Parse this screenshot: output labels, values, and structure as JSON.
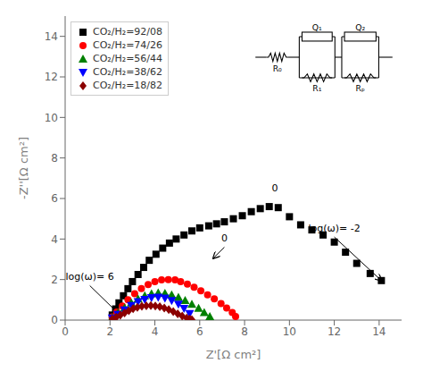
{
  "chart_data": {
    "type": "scatter",
    "x_label": "Z'[Ω cm²]",
    "y_label": "-Z''[Ω cm²]",
    "xlim": [
      0,
      15
    ],
    "ylim": [
      0,
      15
    ],
    "xticks": [
      0,
      2,
      4,
      6,
      8,
      10,
      12,
      14
    ],
    "yticks": [
      0,
      2,
      4,
      6,
      8,
      10,
      12,
      14
    ],
    "grid": false,
    "legend": "upper left",
    "series": [
      {
        "name": "CO₂/H₂=92/08",
        "color": "black",
        "marker": "square",
        "x": [
          2.1,
          2.25,
          2.4,
          2.6,
          2.8,
          3.0,
          3.25,
          3.5,
          3.75,
          4.05,
          4.35,
          4.65,
          4.95,
          5.3,
          5.65,
          6.0,
          6.4,
          6.75,
          7.1,
          7.5,
          7.9,
          8.3,
          8.7,
          9.1,
          9.5,
          10.0,
          10.5,
          11.0,
          11.5,
          12.0,
          12.5,
          13.0,
          13.6,
          14.1
        ],
        "values": [
          0.25,
          0.55,
          0.85,
          1.2,
          1.55,
          1.9,
          2.25,
          2.6,
          2.95,
          3.25,
          3.55,
          3.8,
          4.0,
          4.2,
          4.4,
          4.55,
          4.65,
          4.75,
          4.85,
          5.0,
          5.15,
          5.35,
          5.5,
          5.6,
          5.55,
          5.1,
          4.7,
          4.45,
          4.2,
          3.85,
          3.35,
          2.8,
          2.3,
          1.95
        ]
      },
      {
        "name": "CO₂/H₂=74/26",
        "color": "red",
        "marker": "circle",
        "x": [
          2.1,
          2.3,
          2.55,
          2.8,
          3.1,
          3.4,
          3.7,
          4.0,
          4.3,
          4.6,
          4.9,
          5.15,
          5.45,
          5.75,
          6.05,
          6.35,
          6.65,
          6.95,
          7.2,
          7.45,
          7.6
        ],
        "values": [
          0.15,
          0.4,
          0.7,
          1.0,
          1.3,
          1.55,
          1.75,
          1.9,
          1.98,
          2.0,
          1.98,
          1.9,
          1.78,
          1.62,
          1.45,
          1.25,
          1.05,
          0.82,
          0.6,
          0.38,
          0.18
        ]
      },
      {
        "name": "CO₂/H₂=56/44",
        "color": "green",
        "marker": "triangle",
        "x": [
          2.1,
          2.35,
          2.65,
          2.95,
          3.25,
          3.55,
          3.85,
          4.15,
          4.45,
          4.75,
          5.05,
          5.35,
          5.65,
          5.95,
          6.2,
          6.45
        ],
        "values": [
          0.12,
          0.35,
          0.6,
          0.85,
          1.05,
          1.2,
          1.3,
          1.35,
          1.32,
          1.25,
          1.12,
          0.97,
          0.78,
          0.58,
          0.38,
          0.18
        ]
      },
      {
        "name": "CO₂/H₂=38/62",
        "color": "blue",
        "marker": "triangle_down",
        "x": [
          2.1,
          2.35,
          2.65,
          2.95,
          3.25,
          3.55,
          3.85,
          4.15,
          4.45,
          4.75,
          5.05,
          5.3,
          5.55
        ],
        "values": [
          0.1,
          0.28,
          0.5,
          0.72,
          0.9,
          1.02,
          1.1,
          1.12,
          1.08,
          0.96,
          0.78,
          0.57,
          0.32
        ]
      },
      {
        "name": "CO₂/H₂=18/82",
        "color": "#8B0000",
        "marker": "diamond",
        "x": [
          2.1,
          2.28,
          2.46,
          2.65,
          2.84,
          3.03,
          3.22,
          3.42,
          3.62,
          3.82,
          4.02,
          4.22,
          4.42,
          4.62,
          4.82,
          5.02,
          5.22,
          5.42,
          5.55,
          5.65
        ],
        "values": [
          0.05,
          0.14,
          0.24,
          0.35,
          0.46,
          0.56,
          0.63,
          0.68,
          0.71,
          0.72,
          0.7,
          0.66,
          0.6,
          0.52,
          0.42,
          0.31,
          0.2,
          0.1,
          0.05,
          0.02
        ]
      }
    ],
    "annotations": [
      {
        "text": "log(ω)= 6",
        "x": 1.1,
        "y": 1.7,
        "arrow_x": 2.4,
        "arrow_y": 0.3
      },
      {
        "text": "0",
        "x": 7.1,
        "y": 3.6,
        "arrow_x": 6.6,
        "arrow_y": 3.05
      },
      {
        "text": "0",
        "x": 9.35,
        "y": 6.1
      },
      {
        "text": "log(ω)= -2",
        "x": 12.0,
        "y": 4.1,
        "arrow_x": 14.1,
        "arrow_y": 1.95
      }
    ],
    "circuit_labels": [
      "R₀",
      "Q₁",
      "R₁",
      "Q₂",
      "Rₚ"
    ]
  }
}
